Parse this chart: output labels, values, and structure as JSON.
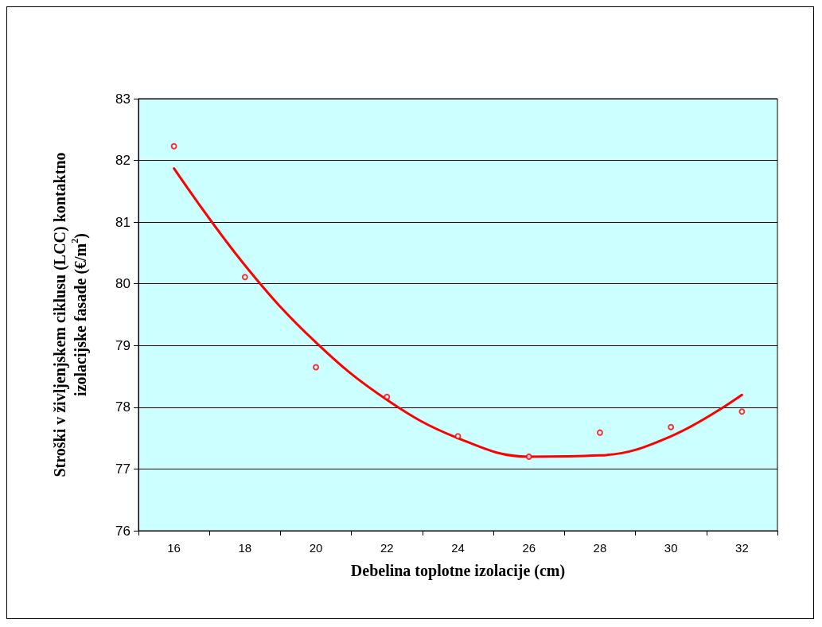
{
  "chart_data": {
    "type": "scatter",
    "xlabel": "Debelina toplotne izolacije (cm)",
    "ylabel": "Stroški v življenjskem ciklusu (LCC) kontaktno\nizolacijske fasade (€/m$^{2}$)",
    "categories": [
      "16",
      "18",
      "20",
      "22",
      "24",
      "26",
      "28",
      "30",
      "32"
    ],
    "series": [
      {
        "color": "#ff0000",
        "marker": "circle",
        "values": [
          82.23,
          80.11,
          78.65,
          78.17,
          77.53,
          77.2,
          77.59,
          77.68,
          77.93
        ]
      },
      {
        "type": "line",
        "color": "#ff0000",
        "marker": "none",
        "line_style": "solid",
        "values": [
          81.87,
          80.3,
          79.05,
          78.12,
          77.5,
          77.2,
          77.22,
          77.53,
          78.2
        ]
      }
    ],
    "ylim": [
      76,
      83
    ],
    "yticks": [
      76,
      77,
      78,
      79,
      80,
      81,
      82,
      83
    ],
    "grid": "y"
  }
}
